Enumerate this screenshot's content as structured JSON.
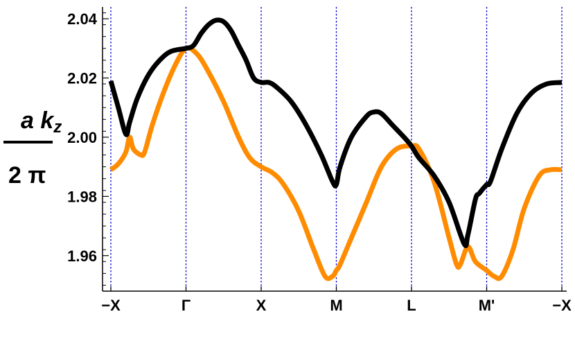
{
  "chart_data": {
    "type": "line",
    "ylabel_parts": {
      "numerator": "a k",
      "numerator_sub": "z",
      "denominator": "2 π"
    },
    "xticks": [
      "−X",
      "Γ",
      "X",
      "M",
      "L",
      "M'",
      "−X"
    ],
    "yticks": [
      "1.96",
      "1.98",
      "2.00",
      "2.02",
      "2.04"
    ],
    "ylim": [
      1.948,
      2.044
    ],
    "xlim": [
      0,
      6
    ],
    "grid": "dotted vertical lines at high-symmetry points",
    "colors": {
      "series1": "#000000",
      "series2": "#ff8c00",
      "grid": "#0000cc",
      "axis": "#000000"
    },
    "series": [
      {
        "values": [
          [
            0.0,
            2.019
          ],
          [
            0.1,
            2.01
          ],
          [
            0.2,
            2.001
          ],
          [
            0.25,
            2.005
          ],
          [
            0.35,
            2.013
          ],
          [
            0.5,
            2.021
          ],
          [
            0.65,
            2.026
          ],
          [
            0.8,
            2.029
          ],
          [
            1.0,
            2.03
          ],
          [
            1.1,
            2.031
          ],
          [
            1.2,
            2.035
          ],
          [
            1.3,
            2.038
          ],
          [
            1.4,
            2.0395
          ],
          [
            1.5,
            2.039
          ],
          [
            1.6,
            2.036
          ],
          [
            1.7,
            2.031
          ],
          [
            1.8,
            2.026
          ],
          [
            1.9,
            2.02
          ],
          [
            2.0,
            2.0185
          ],
          [
            2.1,
            2.0185
          ],
          [
            2.2,
            2.017
          ],
          [
            2.4,
            2.012
          ],
          [
            2.6,
            2.004
          ],
          [
            2.8,
            1.994
          ],
          [
            2.95,
            1.985
          ],
          [
            3.0,
            1.984
          ],
          [
            3.05,
            1.99
          ],
          [
            3.2,
            2.0
          ],
          [
            3.4,
            2.007
          ],
          [
            3.5,
            2.0085
          ],
          [
            3.6,
            2.008
          ],
          [
            3.75,
            2.004
          ],
          [
            3.9,
            2.0
          ],
          [
            4.0,
            1.997
          ],
          [
            4.1,
            1.993
          ],
          [
            4.3,
            1.987
          ],
          [
            4.5,
            1.978
          ],
          [
            4.7,
            1.964
          ],
          [
            4.75,
            1.967
          ],
          [
            4.85,
            1.979
          ],
          [
            4.9,
            1.981
          ],
          [
            5.0,
            1.984
          ],
          [
            5.05,
            1.985
          ],
          [
            5.2,
            1.996
          ],
          [
            5.4,
            2.008
          ],
          [
            5.6,
            2.015
          ],
          [
            5.8,
            2.018
          ],
          [
            6.0,
            2.0185
          ]
        ]
      },
      {
        "values": [
          [
            0.0,
            1.989
          ],
          [
            0.1,
            1.991
          ],
          [
            0.2,
            1.995
          ],
          [
            0.25,
            2.0
          ],
          [
            0.3,
            1.996
          ],
          [
            0.4,
            1.994
          ],
          [
            0.45,
            1.995
          ],
          [
            0.55,
            2.004
          ],
          [
            0.7,
            2.015
          ],
          [
            0.85,
            2.024
          ],
          [
            1.0,
            2.03
          ],
          [
            1.15,
            2.028
          ],
          [
            1.3,
            2.022
          ],
          [
            1.5,
            2.012
          ],
          [
            1.7,
            2.0
          ],
          [
            1.85,
            1.993
          ],
          [
            2.0,
            1.99
          ],
          [
            2.15,
            1.988
          ],
          [
            2.3,
            1.984
          ],
          [
            2.5,
            1.975
          ],
          [
            2.7,
            1.962
          ],
          [
            2.85,
            1.953
          ],
          [
            2.95,
            1.953
          ],
          [
            3.0,
            1.955
          ],
          [
            3.05,
            1.957
          ],
          [
            3.2,
            1.966
          ],
          [
            3.4,
            1.978
          ],
          [
            3.6,
            1.99
          ],
          [
            3.8,
            1.996
          ],
          [
            4.0,
            1.997
          ],
          [
            4.1,
            1.996
          ],
          [
            4.3,
            1.985
          ],
          [
            4.5,
            1.966
          ],
          [
            4.6,
            1.957
          ],
          [
            4.65,
            1.957
          ],
          [
            4.75,
            1.963
          ],
          [
            4.85,
            1.958
          ],
          [
            5.0,
            1.955
          ],
          [
            5.1,
            1.953
          ],
          [
            5.2,
            1.953
          ],
          [
            5.35,
            1.962
          ],
          [
            5.5,
            1.976
          ],
          [
            5.7,
            1.987
          ],
          [
            5.85,
            1.989
          ],
          [
            6.0,
            1.989
          ]
        ]
      }
    ]
  }
}
